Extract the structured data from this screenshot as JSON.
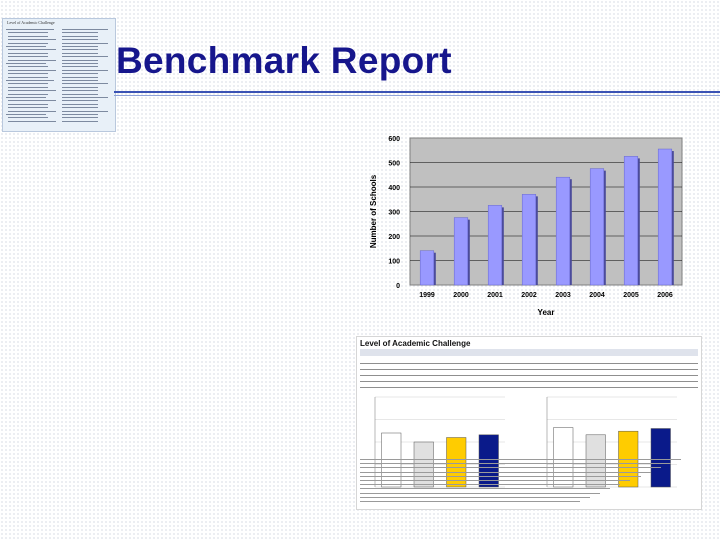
{
  "slide": {
    "title": "Benchmark Report",
    "accent_color": "#16168c",
    "rule_color": "#3a52b4"
  },
  "thumbnail": {
    "title": "Level of Academic Challenge"
  },
  "chart_data": {
    "type": "bar",
    "categories": [
      "1999",
      "2000",
      "2001",
      "2002",
      "2003",
      "2004",
      "2005",
      "2006"
    ],
    "values": [
      140,
      275,
      325,
      370,
      440,
      475,
      525,
      555
    ],
    "xlabel": "Year",
    "ylabel": "Number of Schools",
    "ylim": [
      0,
      600
    ],
    "yticks": [
      "0",
      "100",
      "200",
      "300",
      "400",
      "500",
      "600"
    ],
    "grid": true,
    "legend": "none",
    "colors": {
      "bar": "#9999ff",
      "bar_shadow": "#4a4a9a",
      "plot_bg": "#c0c0c0"
    }
  },
  "report_image": {
    "title": "Level of Academic Challenge",
    "sections": [
      "First-Year",
      "Senior"
    ],
    "bars": {
      "first_year": [
        0.6,
        0.5,
        0.55,
        0.58
      ],
      "senior": [
        0.66,
        0.58,
        0.62,
        0.65
      ]
    },
    "bar_colors": [
      "#ffffff",
      "#e0e0e0",
      "#ffcc00",
      "#0a1a8a"
    ]
  }
}
